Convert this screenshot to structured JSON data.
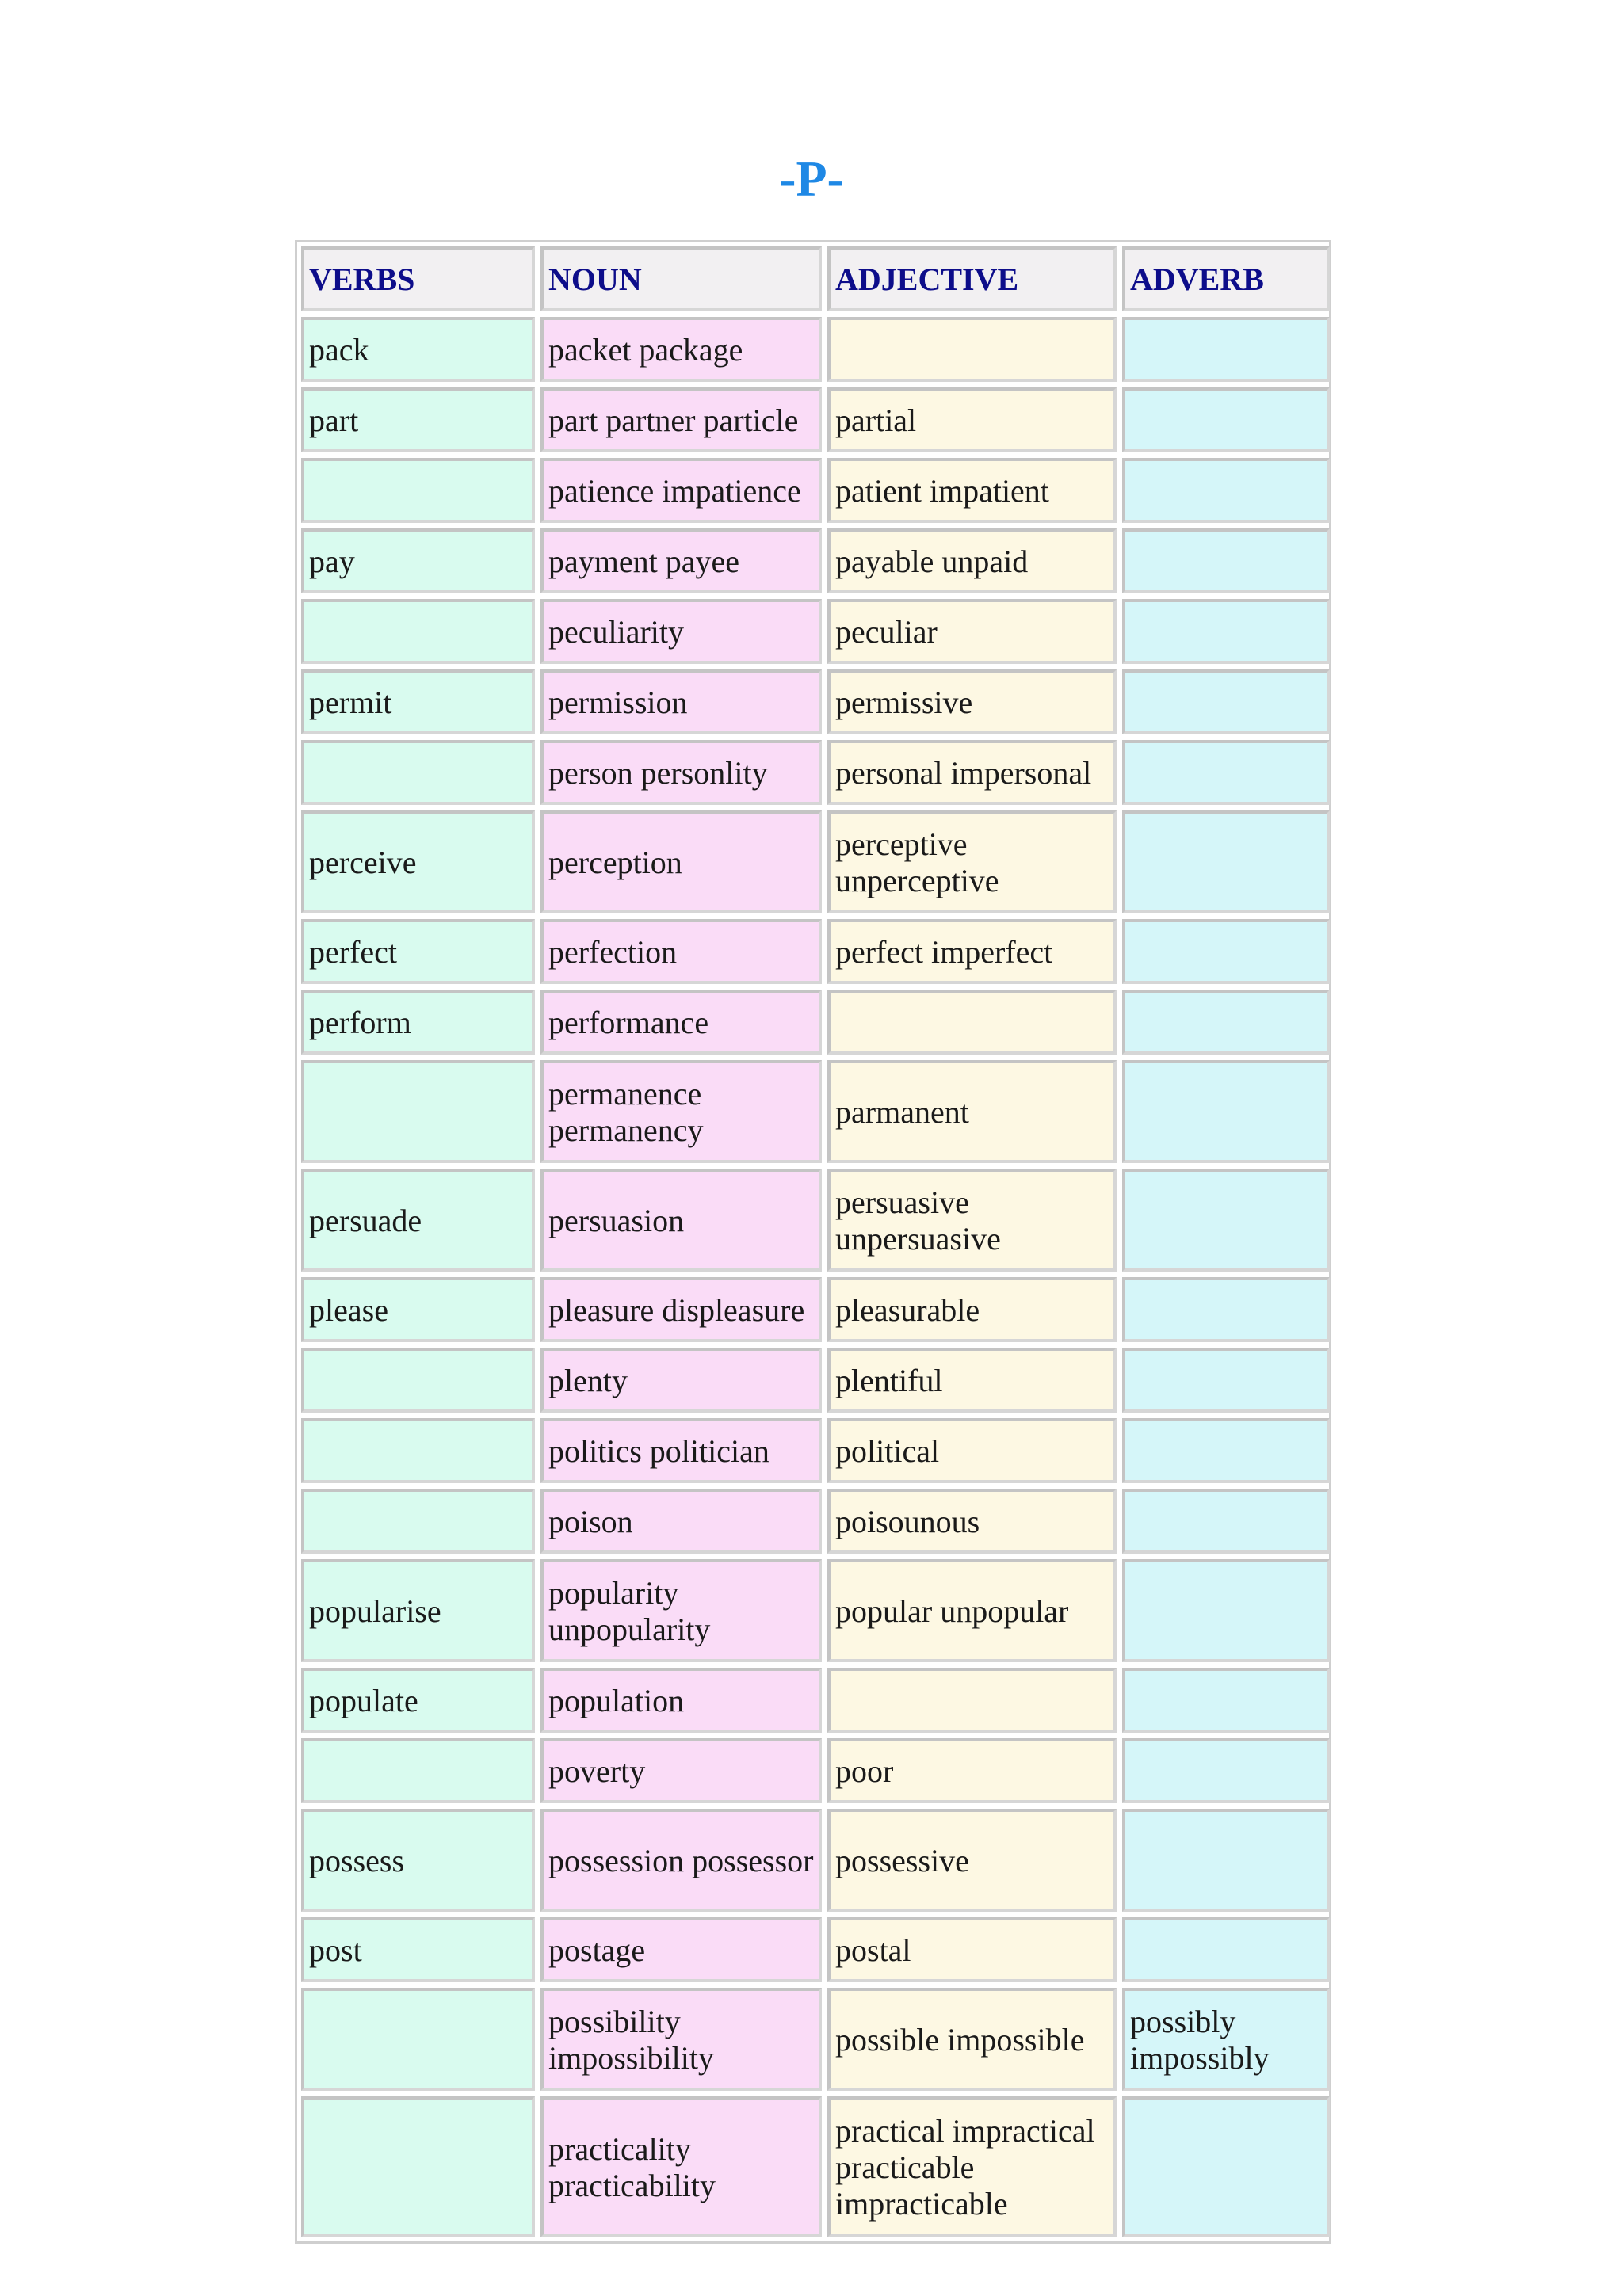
{
  "title": "-P-",
  "headers": {
    "verbs": "VERBS",
    "noun": "NOUN",
    "adjective": "ADJECTIVE",
    "adverb": "ADVERB"
  },
  "rows": [
    {
      "verb": "pack",
      "noun": "packet package",
      "adjective": "",
      "adverb": ""
    },
    {
      "verb": "part",
      "noun": "part partner particle",
      "adjective": "partial",
      "adverb": ""
    },
    {
      "verb": "",
      "noun": "patience impatience",
      "adjective": "patient impatient",
      "adverb": ""
    },
    {
      "verb": "pay",
      "noun": "payment payee",
      "adjective": "payable unpaid",
      "adverb": ""
    },
    {
      "verb": "",
      "noun": "peculiarity",
      "adjective": "peculiar",
      "adverb": ""
    },
    {
      "verb": "permit",
      "noun": "permission",
      "adjective": "permissive",
      "adverb": ""
    },
    {
      "verb": "",
      "noun": "person personlity",
      "adjective": "personal impersonal",
      "adverb": ""
    },
    {
      "verb": "perceive",
      "noun": "perception",
      "adjective": "perceptive unperceptive",
      "adverb": ""
    },
    {
      "verb": "perfect",
      "noun": "perfection",
      "adjective": "perfect imperfect",
      "adverb": ""
    },
    {
      "verb": "perform",
      "noun": "performance",
      "adjective": "",
      "adverb": ""
    },
    {
      "verb": "",
      "noun": "permanence permanency",
      "adjective": "parmanent",
      "adverb": ""
    },
    {
      "verb": "persuade",
      "noun": "persuasion",
      "adjective": "persuasive unpersuasive",
      "adverb": ""
    },
    {
      "verb": "please",
      "noun": "pleasure displeasure",
      "adjective": "pleasurable",
      "adverb": ""
    },
    {
      "verb": "",
      "noun": "plenty",
      "adjective": "plentiful",
      "adverb": ""
    },
    {
      "verb": "",
      "noun": "politics politician",
      "adjective": "political",
      "adverb": ""
    },
    {
      "verb": "",
      "noun": "poison",
      "adjective": "poisounous",
      "adverb": ""
    },
    {
      "verb": "popularise",
      "noun": "popularity unpopularity",
      "adjective": "popular unpopular",
      "adverb": ""
    },
    {
      "verb": "populate",
      "noun": "population",
      "adjective": "",
      "adverb": ""
    },
    {
      "verb": "",
      "noun": "poverty",
      "adjective": "poor",
      "adverb": ""
    },
    {
      "verb": "possess",
      "noun": "possession possessor",
      "adjective": "possessive",
      "adverb": ""
    },
    {
      "verb": "post",
      "noun": "postage",
      "adjective": "postal",
      "adverb": ""
    },
    {
      "verb": "",
      "noun": "possibility impossibility",
      "adjective": "possible impossible",
      "adverb": "possibly impossibly"
    },
    {
      "verb": "",
      "noun": "practicality practicability",
      "adjective": "practical impractical practicable impracticable",
      "adverb": ""
    }
  ]
}
